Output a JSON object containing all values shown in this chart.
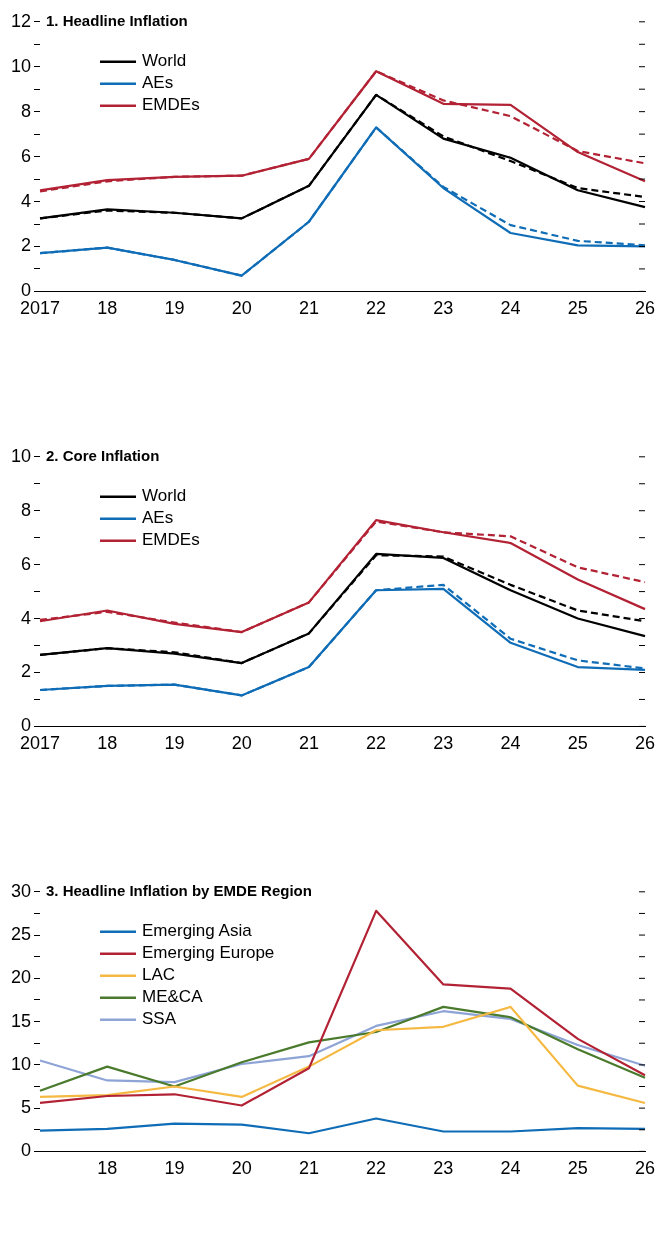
{
  "chart_data": [
    {
      "type": "line",
      "title": "1. Headline Inflation",
      "categories": [
        "2017",
        "18",
        "19",
        "20",
        "21",
        "22",
        "23",
        "24",
        "25",
        "26"
      ],
      "ylim": [
        0,
        12
      ],
      "yticks": [
        0,
        {
          "value": 1,
          "label": null
        },
        2,
        {
          "value": 3,
          "label": null
        },
        4,
        {
          "value": 5,
          "label": null
        },
        6,
        {
          "value": 7,
          "label": null
        },
        8,
        {
          "value": 9,
          "label": null
        },
        10,
        {
          "value": 11,
          "label": null
        },
        12
      ],
      "grid": false,
      "legend": "top left",
      "marker": "none",
      "series": [
        {
          "name": "World",
          "color": "#000000",
          "line_style": "solid",
          "values": [
            3.25,
            3.65,
            3.5,
            3.25,
            4.7,
            8.75,
            6.8,
            5.95,
            4.5,
            3.75
          ]
        },
        {
          "name": "AEs",
          "color": "#0f6cb6",
          "line_style": "solid",
          "values": [
            1.7,
            1.95,
            1.4,
            0.7,
            3.1,
            7.3,
            4.6,
            2.6,
            2.05,
            2.0
          ]
        },
        {
          "name": "EMDEs",
          "color": "#b22234",
          "line_style": "solid",
          "values": [
            4.5,
            4.95,
            5.1,
            5.15,
            5.9,
            9.8,
            8.35,
            8.3,
            6.2,
            4.9
          ]
        },
        {
          "color": "#000000",
          "line_style": "dashed",
          "values": [
            3.25,
            3.6,
            3.5,
            3.25,
            4.7,
            8.75,
            6.9,
            5.8,
            4.6,
            4.2
          ]
        },
        {
          "color": "#0f6cb6",
          "line_style": "dashed",
          "values": [
            1.7,
            1.95,
            1.4,
            0.7,
            3.1,
            7.3,
            4.65,
            2.95,
            2.25,
            2.05
          ]
        },
        {
          "color": "#b22234",
          "line_style": "dashed",
          "values": [
            4.45,
            4.9,
            5.1,
            5.15,
            5.9,
            9.8,
            8.5,
            7.8,
            6.25,
            5.7
          ]
        }
      ]
    },
    {
      "type": "line",
      "title": "2. Core Inflation",
      "categories": [
        "2017",
        "18",
        "19",
        "20",
        "21",
        "22",
        "23",
        "24",
        "25",
        "26"
      ],
      "ylim": [
        0,
        10
      ],
      "yticks": [
        0,
        {
          "value": 1,
          "label": null
        },
        2,
        {
          "value": 3,
          "label": null
        },
        4,
        {
          "value": 5,
          "label": null
        },
        6,
        {
          "value": 7,
          "label": null
        },
        8,
        {
          "value": 9,
          "label": null
        },
        10
      ],
      "grid": false,
      "legend": "top left",
      "marker": "none",
      "series": [
        {
          "name": "World",
          "color": "#000000",
          "line_style": "solid",
          "values": [
            2.65,
            2.9,
            2.7,
            2.35,
            3.45,
            6.4,
            6.25,
            5.05,
            4.0,
            3.35
          ]
        },
        {
          "name": "AEs",
          "color": "#0f6cb6",
          "line_style": "solid",
          "values": [
            1.35,
            1.5,
            1.55,
            1.15,
            2.2,
            5.05,
            5.1,
            3.1,
            2.2,
            2.1
          ]
        },
        {
          "name": "EMDEs",
          "color": "#b22234",
          "line_style": "solid",
          "values": [
            3.9,
            4.3,
            3.8,
            3.5,
            4.6,
            7.65,
            7.2,
            6.8,
            5.45,
            4.35
          ]
        },
        {
          "color": "#000000",
          "line_style": "dashed",
          "values": [
            2.65,
            2.9,
            2.75,
            2.35,
            3.45,
            6.35,
            6.3,
            5.25,
            4.3,
            3.9
          ]
        },
        {
          "color": "#0f6cb6",
          "line_style": "dashed",
          "values": [
            1.35,
            1.5,
            1.55,
            1.15,
            2.2,
            5.05,
            5.25,
            3.25,
            2.45,
            2.15
          ]
        },
        {
          "color": "#b22234",
          "line_style": "dashed",
          "values": [
            3.95,
            4.25,
            3.85,
            3.5,
            4.6,
            7.6,
            7.2,
            7.05,
            5.9,
            5.35
          ]
        }
      ]
    },
    {
      "type": "line",
      "title": "3. Headline Inflation by EMDE Region",
      "categories": [
        null,
        "18",
        "19",
        "20",
        "21",
        "22",
        "23",
        "24",
        "25",
        "26"
      ],
      "ylim": [
        0,
        30
      ],
      "yticks": [
        0,
        {
          "value": 2.5,
          "label": null
        },
        5,
        {
          "value": 7.5,
          "label": null
        },
        10,
        {
          "value": 12.5,
          "label": null
        },
        15,
        {
          "value": 17.5,
          "label": null
        },
        20,
        {
          "value": 22.5,
          "label": null
        },
        25,
        {
          "value": 27.5,
          "label": null
        },
        30
      ],
      "grid": false,
      "legend": "top left",
      "marker": "none",
      "series": [
        {
          "name": "Emerging Asia",
          "color": "#0f6cb6",
          "line_style": "solid",
          "values": [
            2.4,
            2.6,
            3.2,
            3.1,
            2.1,
            3.8,
            2.3,
            2.3,
            2.7,
            2.6
          ]
        },
        {
          "name": "Emerging Europe",
          "color": "#b22234",
          "line_style": "solid",
          "values": [
            5.6,
            6.4,
            6.6,
            5.3,
            9.6,
            27.8,
            19.3,
            18.8,
            13.0,
            8.8
          ]
        },
        {
          "name": "LAC",
          "color": "#f5b942",
          "line_style": "solid",
          "values": [
            6.3,
            6.5,
            7.5,
            6.3,
            9.8,
            14.0,
            14.4,
            16.7,
            7.6,
            5.6
          ]
        },
        {
          "name": "ME&CA",
          "color": "#4a7a2c",
          "line_style": "solid",
          "values": [
            7.0,
            9.8,
            7.5,
            10.3,
            12.6,
            13.8,
            16.7,
            15.5,
            11.8,
            8.5
          ]
        },
        {
          "name": "SSA",
          "color": "#8ea4d6",
          "line_style": "solid",
          "values": [
            10.5,
            8.2,
            8.0,
            10.1,
            11.0,
            14.5,
            16.2,
            15.3,
            12.3,
            9.9
          ]
        }
      ]
    }
  ]
}
